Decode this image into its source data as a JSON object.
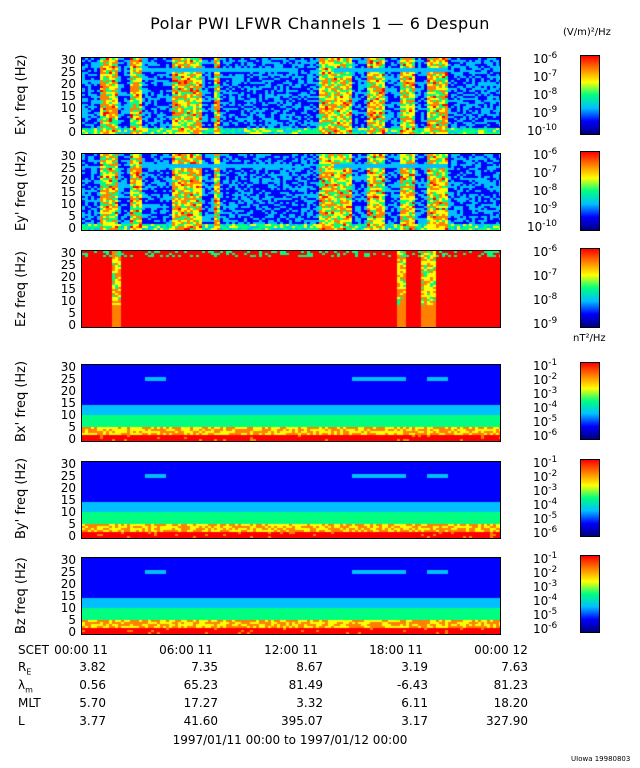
{
  "title": "Polar PWI LFWR Channels 1 — 6 Despun",
  "units": {
    "electric": "(V/m)²/Hz",
    "magnetic": "nT²/Hz"
  },
  "panels": [
    {
      "ylabel": "Ex' freq (Hz)",
      "yticks": [
        "30",
        "25",
        "20",
        "15",
        "10",
        "5",
        "0"
      ]
    },
    {
      "ylabel": "Ey' freq (Hz)",
      "yticks": [
        "30",
        "25",
        "20",
        "15",
        "10",
        "5",
        "0"
      ]
    },
    {
      "ylabel": "Ez freq (Hz)",
      "yticks": [
        "30",
        "25",
        "20",
        "15",
        "10",
        "5",
        "0"
      ]
    },
    {
      "ylabel": "Bx' freq (Hz)",
      "yticks": [
        "30",
        "25",
        "20",
        "15",
        "10",
        "5",
        "0"
      ]
    },
    {
      "ylabel": "By' freq (Hz)",
      "yticks": [
        "30",
        "25",
        "20",
        "15",
        "10",
        "5",
        "0"
      ]
    },
    {
      "ylabel": "Bz freq (Hz)",
      "yticks": [
        "30",
        "25",
        "20",
        "15",
        "10",
        "5",
        "0"
      ]
    }
  ],
  "colorbars": [
    {
      "ticks": [
        {
          "base": "10",
          "exp": "-6"
        },
        {
          "base": "10",
          "exp": "-7"
        },
        {
          "base": "10",
          "exp": "-8"
        },
        {
          "base": "10",
          "exp": "-9"
        },
        {
          "base": "10",
          "exp": "-10"
        }
      ]
    },
    {
      "ticks": [
        {
          "base": "10",
          "exp": "-6"
        },
        {
          "base": "10",
          "exp": "-7"
        },
        {
          "base": "10",
          "exp": "-8"
        },
        {
          "base": "10",
          "exp": "-9"
        },
        {
          "base": "10",
          "exp": "-10"
        }
      ]
    },
    {
      "ticks": [
        {
          "base": "10",
          "exp": "-6"
        },
        {
          "base": "10",
          "exp": "-7"
        },
        {
          "base": "10",
          "exp": "-8"
        },
        {
          "base": "10",
          "exp": "-9"
        }
      ]
    },
    {
      "ticks": [
        {
          "base": "10",
          "exp": "-1"
        },
        {
          "base": "10",
          "exp": "-2"
        },
        {
          "base": "10",
          "exp": "-3"
        },
        {
          "base": "10",
          "exp": "-4"
        },
        {
          "base": "10",
          "exp": "-5"
        },
        {
          "base": "10",
          "exp": "-6"
        }
      ]
    },
    {
      "ticks": [
        {
          "base": "10",
          "exp": "-1"
        },
        {
          "base": "10",
          "exp": "-2"
        },
        {
          "base": "10",
          "exp": "-3"
        },
        {
          "base": "10",
          "exp": "-4"
        },
        {
          "base": "10",
          "exp": "-5"
        },
        {
          "base": "10",
          "exp": "-6"
        }
      ]
    },
    {
      "ticks": [
        {
          "base": "10",
          "exp": "-1"
        },
        {
          "base": "10",
          "exp": "-2"
        },
        {
          "base": "10",
          "exp": "-3"
        },
        {
          "base": "10",
          "exp": "-4"
        },
        {
          "base": "10",
          "exp": "-5"
        },
        {
          "base": "10",
          "exp": "-6"
        }
      ]
    }
  ],
  "xaxis": {
    "label": "SCET",
    "ticks": [
      "00:00 11",
      "06:00 11",
      "12:00 11",
      "18:00 11",
      "00:00 12"
    ]
  },
  "ephemeris": {
    "labels": {
      "re": "R",
      "re_sub": "E",
      "lambda": "λ",
      "lambda_sub": "m",
      "mlt": "MLT",
      "l": "L"
    },
    "re": [
      "3.82",
      "7.35",
      "8.67",
      "3.19",
      "7.63"
    ],
    "lambda": [
      "0.56",
      "65.23",
      "81.49",
      "-6.43",
      "81.23"
    ],
    "mlt": [
      "5.70",
      "17.27",
      "3.32",
      "6.11",
      "18.20"
    ],
    "l": [
      "3.77",
      "41.60",
      "395.07",
      "3.17",
      "327.90"
    ]
  },
  "date_range": "1997/01/11 00:00 to 1997/01/12 00:00",
  "footer": "UIowa 19980803",
  "colors": {
    "colormap": [
      "#000080",
      "#0000ff",
      "#00c0ff",
      "#00ff80",
      "#ffff00",
      "#ff8000",
      "#ff0000"
    ]
  },
  "chart_data": {
    "type": "heatmap",
    "title": "Polar PWI LFWR Channels 1 — 6 Despun",
    "xlabel": "SCET",
    "x_range": [
      "1997/01/11 00:00",
      "1997/01/12 00:00"
    ],
    "ylim": [
      0,
      30
    ],
    "series": [
      {
        "name": "Ex'",
        "unit": "(V/m)²/Hz",
        "color_range": [
          1e-10,
          1e-06
        ]
      },
      {
        "name": "Ey'",
        "unit": "(V/m)²/Hz",
        "color_range": [
          1e-10,
          1e-06
        ]
      },
      {
        "name": "Ez",
        "unit": "(V/m)²/Hz",
        "color_range": [
          1e-09,
          1e-06
        ]
      },
      {
        "name": "Bx'",
        "unit": "nT²/Hz",
        "color_range": [
          1e-06,
          0.1
        ]
      },
      {
        "name": "By'",
        "unit": "nT²/Hz",
        "color_range": [
          1e-06,
          0.1
        ]
      },
      {
        "name": "Bz",
        "unit": "nT²/Hz",
        "color_range": [
          1e-06,
          0.1
        ]
      }
    ]
  }
}
